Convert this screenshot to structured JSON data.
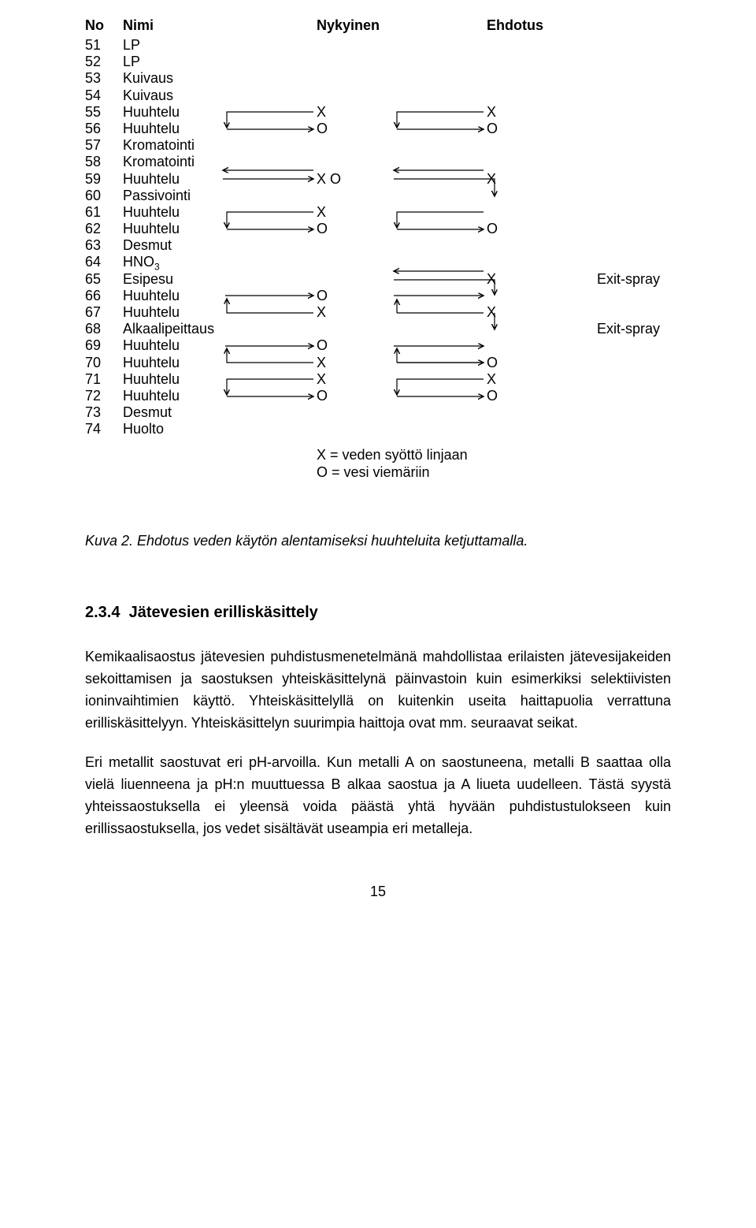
{
  "header": {
    "no": "No",
    "nimi": "Nimi",
    "nykyinen": "Nykyinen",
    "ehdotus": "Ehdotus"
  },
  "rows": [
    {
      "no": "51",
      "nimi": "LP",
      "nyk": "",
      "ehd": "",
      "extra": ""
    },
    {
      "no": "52",
      "nimi": "LP",
      "nyk": "",
      "ehd": "",
      "extra": ""
    },
    {
      "no": "53",
      "nimi": "Kuivaus",
      "nyk": "",
      "ehd": "",
      "extra": ""
    },
    {
      "no": "54",
      "nimi": "Kuivaus",
      "nyk": "",
      "ehd": "",
      "extra": ""
    },
    {
      "no": "55",
      "nimi": "Huuhtelu",
      "nyk": "X",
      "ehd": "X",
      "extra": ""
    },
    {
      "no": "56",
      "nimi": "Huuhtelu",
      "nyk": "O",
      "ehd": "O",
      "extra": ""
    },
    {
      "no": "57",
      "nimi": "Kromatointi",
      "nyk": "",
      "ehd": "",
      "extra": ""
    },
    {
      "no": "58",
      "nimi": "Kromatointi",
      "nyk": "",
      "ehd": "",
      "extra": ""
    },
    {
      "no": "59",
      "nimi": "Huuhtelu",
      "nyk": "X O",
      "ehd": "X",
      "extra": ""
    },
    {
      "no": "60",
      "nimi": "Passivointi",
      "nyk": "",
      "ehd": "",
      "extra": ""
    },
    {
      "no": "61",
      "nimi": "Huuhtelu",
      "nyk": "X",
      "ehd": "",
      "extra": ""
    },
    {
      "no": "62",
      "nimi": "Huuhtelu",
      "nyk": "O",
      "ehd": "O",
      "extra": ""
    },
    {
      "no": "63",
      "nimi": "Desmut",
      "nyk": "",
      "ehd": "",
      "extra": ""
    },
    {
      "no": "64",
      "nimi": "HNO",
      "nyk": "",
      "ehd": "",
      "extra": ""
    },
    {
      "no": "65",
      "nimi": "Esipesu",
      "nyk": "",
      "ehd": "X",
      "extra": "Exit-spray"
    },
    {
      "no": "66",
      "nimi": "Huuhtelu",
      "nyk": "O",
      "ehd": "",
      "extra": ""
    },
    {
      "no": "67",
      "nimi": "Huuhtelu",
      "nyk": "X",
      "ehd": "X",
      "extra": ""
    },
    {
      "no": "68",
      "nimi": "Alkaalipeittaus",
      "nyk": "",
      "ehd": "",
      "extra": "Exit-spray"
    },
    {
      "no": "69",
      "nimi": "Huuhtelu",
      "nyk": "O",
      "ehd": "",
      "extra": ""
    },
    {
      "no": "70",
      "nimi": "Huuhtelu",
      "nyk": "X",
      "ehd": "O",
      "extra": ""
    },
    {
      "no": "71",
      "nimi": "Huuhtelu",
      "nyk": "X",
      "ehd": "X",
      "extra": ""
    },
    {
      "no": "72",
      "nimi": "Huuhtelu",
      "nyk": "O",
      "ehd": "O",
      "extra": ""
    },
    {
      "no": "73",
      "nimi": "Desmut",
      "nyk": "",
      "ehd": "",
      "extra": ""
    },
    {
      "no": "74",
      "nimi": "Huolto",
      "nyk": "",
      "ehd": "",
      "extra": ""
    }
  ],
  "hno3_sub": "3",
  "legend": {
    "line1": "X = veden syöttö linjaan",
    "line2": "O = vesi viemäriin"
  },
  "caption": "Kuva 2. Ehdotus veden käytön alentamiseksi huuhteluita ketjuttamalla.",
  "section": {
    "number": "2.3.4",
    "title": "Jätevesien erilliskäsittely"
  },
  "para1": "Kemikaalisaostus jätevesien puhdistusmenetelmänä mahdollistaa erilaisten jätevesijakeiden sekoittamisen ja saostuksen yhteiskäsittelynä päinvastoin kuin esimerkiksi selektiivisten ioninvaihtimien käyttö. Yhteiskäsittelyllä on kuitenkin useita haittapuolia verrattuna erilliskäsittelyyn. Yhteiskäsittelyn suurimpia haittoja ovat mm. seuraavat seikat.",
  "para2": "Eri metallit saostuvat eri pH-arvoilla. Kun metalli A on saostuneena, metalli B saattaa olla vielä liuenneena ja pH:n muuttuessa B alkaa saostua ja A liueta uudelleen. Tästä syystä yhteissaostuksella ei yleensä voida päästä yhtä hyvään puhdistustulokseen kuin erillissaostuksella, jos vedet sisältävät useampia eri metalleja.",
  "page_number": "15",
  "colors": {
    "text": "#000000",
    "background": "#ffffff"
  },
  "font": {
    "family": "Arial",
    "body_size_pt": 13,
    "heading_size_pt": 15
  }
}
